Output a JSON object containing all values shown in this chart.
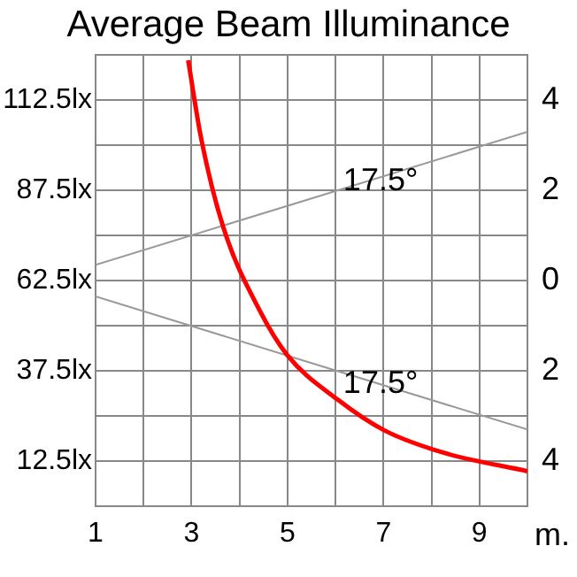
{
  "chart_data": {
    "type": "line",
    "title": "Average Beam Illuminance",
    "xlabel": "m.",
    "xlim": [
      1,
      10
    ],
    "xticks": [
      1,
      {
        "value": 2,
        "label": null
      },
      3,
      {
        "value": 4,
        "label": null
      },
      5,
      {
        "value": 6,
        "label": null
      },
      7,
      {
        "value": 8,
        "label": null
      },
      9,
      {
        "value": 10,
        "label": null
      }
    ],
    "ylim": [
      0,
      125
    ],
    "yticks": [
      {
        "value": 12.5,
        "label": "12.5lx"
      },
      {
        "value": 25,
        "label": null
      },
      {
        "value": 37.5,
        "label": "37.5lx"
      },
      {
        "value": 50,
        "label": null
      },
      {
        "value": 62.5,
        "label": "62.5lx"
      },
      {
        "value": 75,
        "label": null
      },
      {
        "value": 87.5,
        "label": "87.5lx"
      },
      {
        "value": 100,
        "label": null
      },
      {
        "value": 112.5,
        "label": "112.5lx"
      },
      {
        "value": 125,
        "label": null
      }
    ],
    "y2lim": [
      -5,
      5
    ],
    "y2ticks": [
      {
        "value": -4,
        "label": "4"
      },
      {
        "value": -2,
        "label": "2"
      },
      0,
      2,
      4
    ],
    "grid": true,
    "legend": false,
    "marker": "none",
    "series": [
      {
        "color": "#ff0000",
        "x": [
          2.93,
          3.2,
          3.67,
          4.43,
          5.0,
          6.04,
          7.02,
          8.26,
          10
        ],
        "values": [
          123.6,
          102,
          77,
          54,
          41.8,
          29.6,
          21,
          14.8,
          9.7
        ]
      },
      {
        "color": "#999999",
        "axis": "y2",
        "x": [
          1,
          10
        ],
        "values": [
          0.35,
          3.3
        ]
      },
      {
        "color": "#999999",
        "axis": "y2",
        "x": [
          1,
          10
        ],
        "values": [
          -0.35,
          -3.3
        ]
      }
    ],
    "annotations": [
      "17.5°",
      "17.5°"
    ]
  }
}
